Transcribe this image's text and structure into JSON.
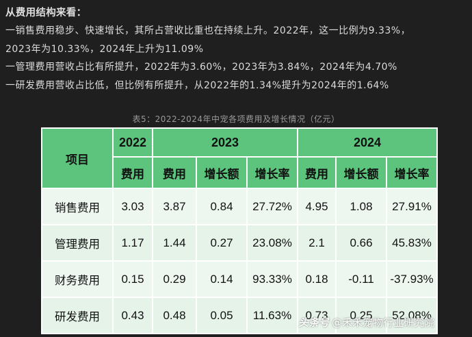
{
  "text": {
    "heading": "从费用结构来看：",
    "lines": [
      "一销售费用稳步、快速增长，其所占营收比重也在持续上升。2022年，这一比例为9.33%，",
      "2023年为10.33%，2024年上升为11.09%",
      "一管理费用营收占比有所提升，2022年为3.60%，2023年为3.84%，2024年为4.70%",
      "一研发费用营收占比低，但比例有所提升，从2022年的1.34%提升为2024年的1.64%"
    ]
  },
  "table": {
    "caption": "表5：2022-2024年中宠各项费用及增长情况（亿元）",
    "item_header": "项目",
    "years": [
      "2022",
      "2023",
      "2024"
    ],
    "subheaders": [
      "费用",
      "费用",
      "增长额",
      "增长率",
      "费用",
      "增长额",
      "增长率"
    ],
    "rows": [
      {
        "name": "销售费用",
        "cells": [
          "3.03",
          "3.87",
          "0.84",
          "27.72%",
          "4.95",
          "1.08",
          "27.91%"
        ]
      },
      {
        "name": "管理费用",
        "cells": [
          "1.17",
          "1.44",
          "0.27",
          "23.08%",
          "2.1",
          "0.66",
          "45.83%"
        ]
      },
      {
        "name": "财务费用",
        "cells": [
          "0.15",
          "0.29",
          "0.14",
          "93.33%",
          "0.18",
          "-0.11",
          "-37.93%"
        ]
      },
      {
        "name": "研发费用",
        "cells": [
          "0.43",
          "0.48",
          "0.05",
          "11.63%",
          "0.73",
          "0.25",
          "52.08%"
        ]
      }
    ]
  },
  "watermark": {
    "logo": "头条号",
    "text": "@禾禾宠物行业研究院"
  }
}
